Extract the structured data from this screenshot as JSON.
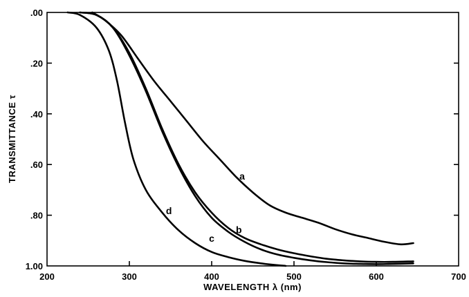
{
  "chart_data": {
    "type": "line",
    "title": "",
    "xlabel": "WAVELENGTH λ (nm)",
    "ylabel": "TRANSMITTANCE τ",
    "xlim": [
      200,
      700
    ],
    "ylim": [
      0,
      1.0
    ],
    "y_inverted": true,
    "grid": false,
    "x_ticks": [
      200,
      300,
      400,
      500,
      600,
      700
    ],
    "x_tick_labels": [
      "200",
      "300",
      "400",
      "500",
      "600",
      "700"
    ],
    "y_ticks": [
      0.0,
      0.2,
      0.4,
      0.6,
      0.8,
      1.0
    ],
    "y_tick_labels": [
      ".00",
      ".20",
      ".40",
      ".60",
      ".80",
      "1.00"
    ],
    "series": [
      {
        "name": "a",
        "x": [
          255,
          270,
          290,
          310,
          330,
          350,
          370,
          390,
          410,
          430,
          450,
          470,
          490,
          510,
          530,
          550,
          570,
          590,
          610,
          630,
          645
        ],
        "y": [
          0.0,
          0.03,
          0.09,
          0.18,
          0.27,
          0.35,
          0.43,
          0.51,
          0.58,
          0.65,
          0.71,
          0.76,
          0.79,
          0.81,
          0.83,
          0.855,
          0.875,
          0.89,
          0.905,
          0.915,
          0.91
        ]
      },
      {
        "name": "b",
        "x": [
          240,
          260,
          280,
          300,
          320,
          340,
          360,
          380,
          400,
          420,
          440,
          460,
          480,
          500,
          520,
          540,
          560,
          580,
          600,
          620,
          645
        ],
        "y": [
          0.0,
          0.01,
          0.06,
          0.16,
          0.3,
          0.46,
          0.6,
          0.71,
          0.79,
          0.85,
          0.89,
          0.915,
          0.935,
          0.95,
          0.962,
          0.972,
          0.978,
          0.982,
          0.984,
          0.984,
          0.982
        ]
      },
      {
        "name": "c",
        "x": [
          240,
          260,
          280,
          300,
          320,
          340,
          360,
          380,
          400,
          420,
          440,
          460,
          480,
          500,
          520,
          540,
          560,
          580,
          600,
          620,
          645
        ],
        "y": [
          0.0,
          0.01,
          0.06,
          0.17,
          0.31,
          0.47,
          0.61,
          0.725,
          0.81,
          0.865,
          0.905,
          0.935,
          0.955,
          0.968,
          0.978,
          0.985,
          0.99,
          0.992,
          0.993,
          0.992,
          0.99
        ]
      },
      {
        "name": "d",
        "x": [
          225,
          240,
          260,
          275,
          285,
          295,
          305,
          320,
          340,
          360,
          380,
          400,
          420,
          440,
          460,
          480,
          490
        ],
        "y": [
          0.0,
          0.01,
          0.06,
          0.15,
          0.27,
          0.44,
          0.58,
          0.7,
          0.79,
          0.86,
          0.91,
          0.945,
          0.965,
          0.98,
          0.99,
          0.997,
          1.0
        ]
      }
    ],
    "curve_labels": [
      {
        "text": "a",
        "x": 437,
        "y": 0.66
      },
      {
        "text": "b",
        "x": 433,
        "y": 0.87
      },
      {
        "text": "c",
        "x": 400,
        "y": 0.905
      },
      {
        "text": "d",
        "x": 348,
        "y": 0.795
      }
    ]
  }
}
